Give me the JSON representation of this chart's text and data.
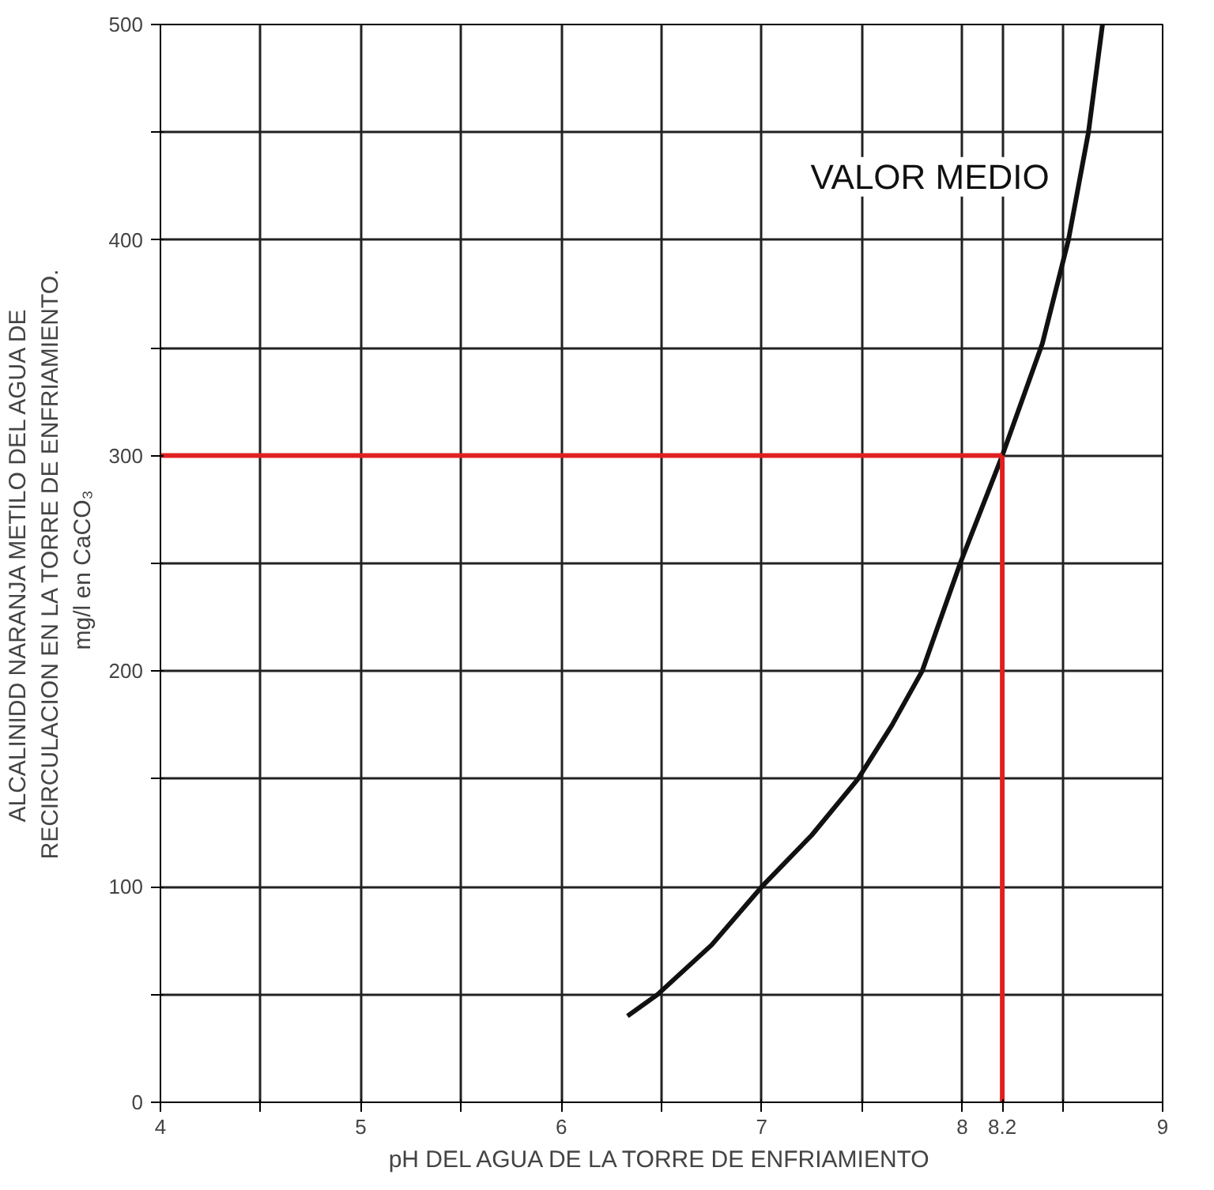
{
  "chart_data": {
    "type": "line",
    "xlabel": "pH DEL AGUA DE LA TORRE DE ENFRIAMIENTO",
    "ylabel": "ALCALINIDD NARANJA METILO DEL AGUA DE\nRECIRCULACION EN LA TORRE DE ENFRIAMIENTO.\nmg/l  en  CaCO₃",
    "xlim": [
      4,
      9
    ],
    "ylim": [
      0,
      500
    ],
    "xticks": [
      4,
      {
        "value": 4.5,
        "label": null
      },
      5,
      {
        "value": 5.5,
        "label": null
      },
      6,
      {
        "value": 6.5,
        "label": null
      },
      7,
      {
        "value": 7.5,
        "label": null
      },
      8,
      8.2,
      {
        "value": 8.5,
        "label": null
      },
      9
    ],
    "yticks": [
      0,
      {
        "value": 50,
        "label": null
      },
      100,
      {
        "value": 150,
        "label": null
      },
      200,
      {
        "value": 250,
        "label": null
      },
      300,
      {
        "value": 350,
        "label": null
      },
      400,
      {
        "value": 450,
        "label": null
      },
      500
    ],
    "grid": true,
    "marker": "none",
    "series": [
      {
        "name": "VALOR MEDIO",
        "color": "#111111",
        "x": [
          6.33,
          6.48,
          6.75,
          7.0,
          7.25,
          7.48,
          7.65,
          7.8,
          7.99,
          8.2,
          8.4,
          8.53,
          8.63,
          8.7
        ],
        "values": [
          40,
          50,
          73,
          100,
          124,
          150,
          175,
          200,
          250,
          300,
          352,
          400,
          450,
          500
        ]
      },
      {
        "color": "#e02020",
        "x": [
          4,
          8.2
        ],
        "values": [
          300,
          300
        ]
      },
      {
        "color": "#e02020",
        "x": [
          8.2,
          8.2
        ],
        "values": [
          0,
          300
        ]
      }
    ]
  }
}
